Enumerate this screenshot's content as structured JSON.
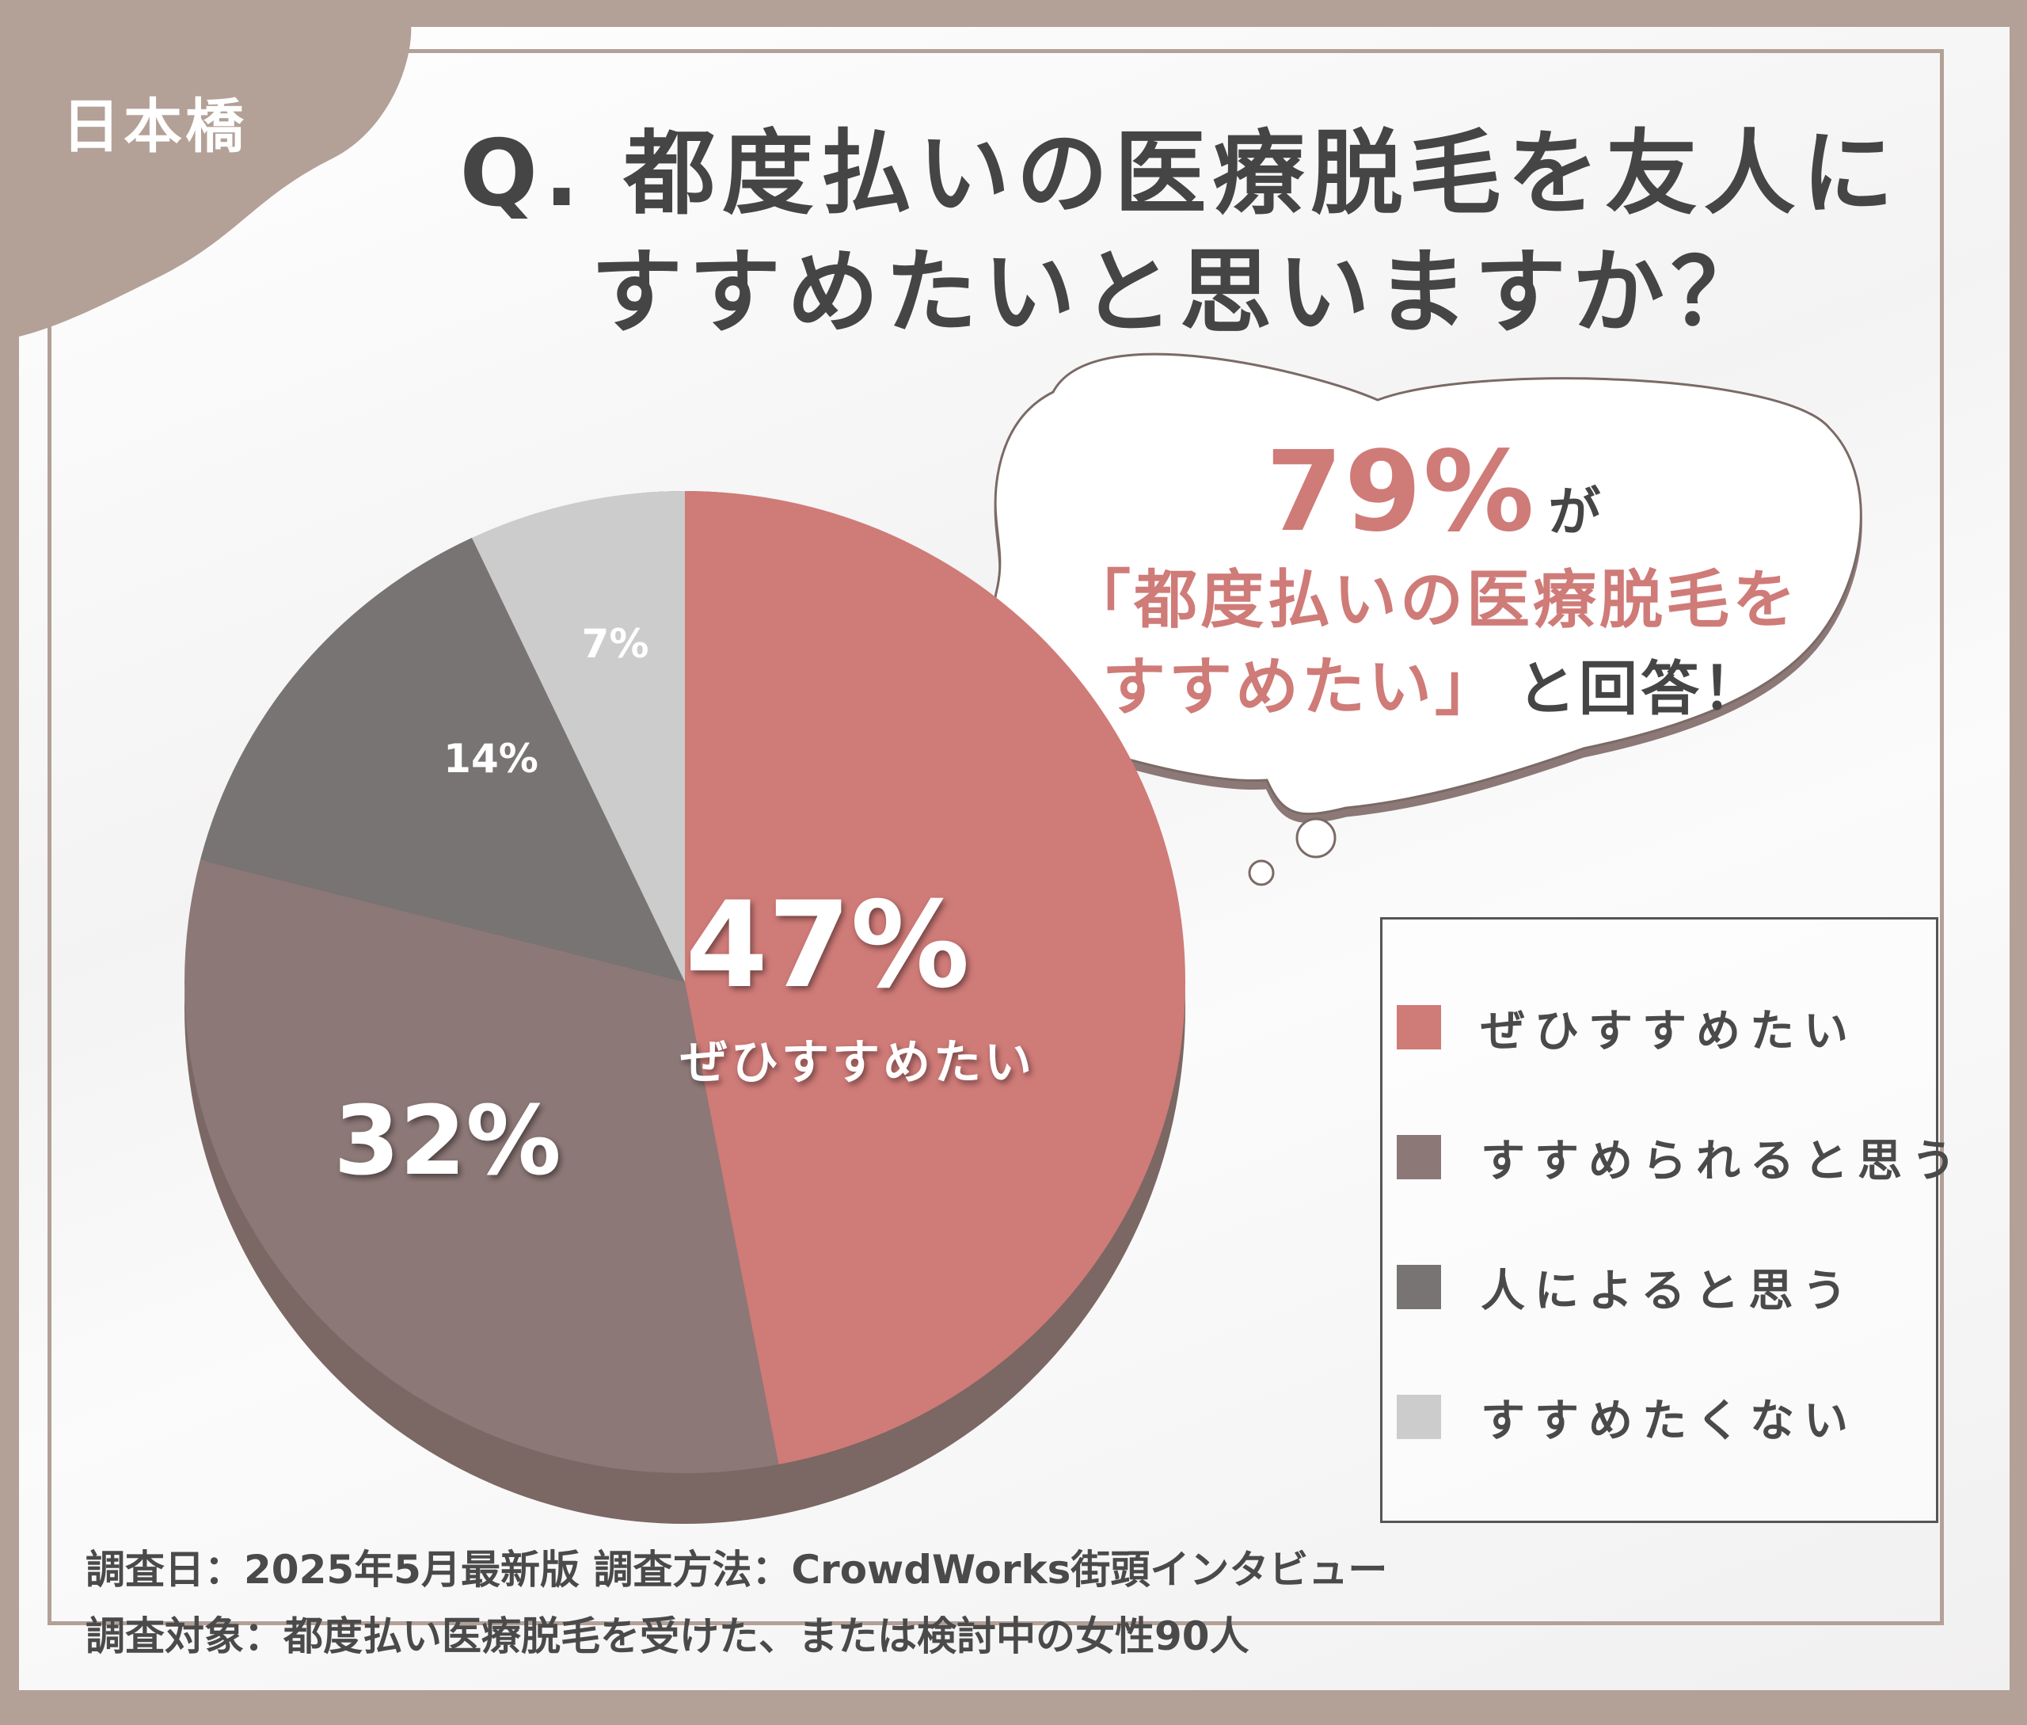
{
  "badge": {
    "label": "日本橋"
  },
  "title": {
    "line1": "Q. 都度払いの医療脱毛を友人に",
    "line2": "すすめたいと思いますか？"
  },
  "callout": {
    "percent": "79%",
    "suffix": "が",
    "line2": "「都度払いの医療脱毛を",
    "line3_pink": "すすめたい」",
    "line3_dark": "と回答！"
  },
  "colors": {
    "frame": "#b3a097",
    "highlight": "#cf7b78",
    "slice1": "#cf7b78",
    "slice2": "#8c7877",
    "slice3": "#777473",
    "slice4": "#cccccc",
    "text_dark": "#454545"
  },
  "chart_data": {
    "type": "pie",
    "slices": [
      {
        "label": "ぜひすすめたい",
        "value": 47,
        "value_label": "47%",
        "inner_label": "ぜひすすめたい",
        "color": "#cf7b78"
      },
      {
        "label": "すすめられると思う",
        "value": 32,
        "value_label": "32%",
        "color": "#8c7877"
      },
      {
        "label": "人によると思う",
        "value": 14,
        "value_label": "14%",
        "color": "#777473"
      },
      {
        "label": "すすめたくない",
        "value": 7,
        "value_label": "7%",
        "color": "#cccccc"
      }
    ],
    "legend_position": "right"
  },
  "footer": {
    "line1": "調査日：2025年5月最新版  調査方法：CrowdWorks街頭インタビュー",
    "line2": "調査対象：都度払い医療脱毛を受けた、または検討中の女性90人"
  }
}
